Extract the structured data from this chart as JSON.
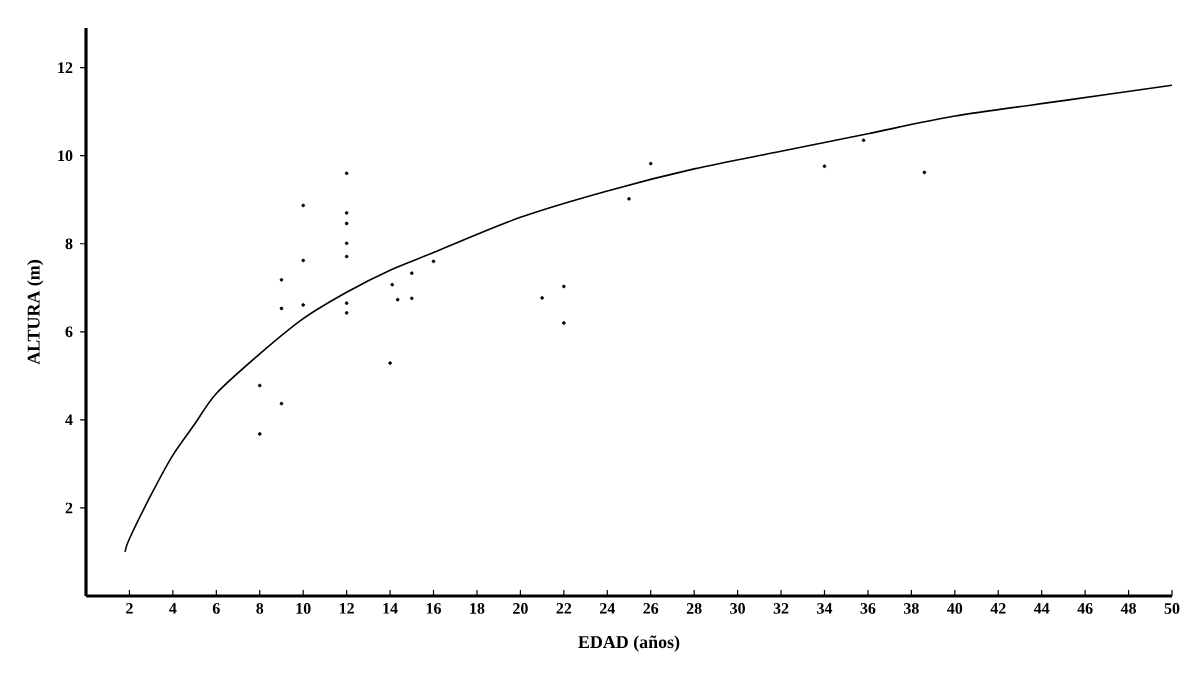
{
  "chart_data": {
    "type": "scatter",
    "xlabel": "EDAD (años)",
    "ylabel": "ALTURA (m)",
    "xlim": [
      0,
      50
    ],
    "ylim": [
      0,
      12.9
    ],
    "xticks": [
      2,
      4,
      6,
      8,
      10,
      12,
      14,
      16,
      18,
      20,
      22,
      24,
      26,
      28,
      30,
      32,
      34,
      36,
      38,
      40,
      42,
      44,
      46,
      48,
      50
    ],
    "yticks": [
      2,
      4,
      6,
      8,
      10,
      12
    ],
    "grid": false,
    "series": [
      {
        "color": "#000000",
        "marker": "circle",
        "x": [
          8,
          8,
          9,
          9,
          9,
          10,
          10,
          10,
          12,
          12,
          12,
          12,
          12,
          12,
          12,
          14.1,
          14,
          14.35,
          15,
          15,
          16,
          21,
          22,
          22,
          25,
          26,
          34,
          35.8,
          38.6
        ],
        "values": [
          4.78,
          3.68,
          4.37,
          7.18,
          6.53,
          8.87,
          7.62,
          6.61,
          9.6,
          8.7,
          8.46,
          8.01,
          7.71,
          6.65,
          6.43,
          7.07,
          5.29,
          6.73,
          7.33,
          6.76,
          7.6,
          6.77,
          7.03,
          6.2,
          9.02,
          9.82,
          9.76,
          10.35,
          9.62
        ]
      },
      {
        "type": "line",
        "color": "#000000",
        "marker": "none",
        "line_style": "solid",
        "x": [
          1.8,
          2,
          3,
          4,
          5,
          6,
          8,
          10,
          12,
          14,
          16,
          20,
          24,
          28,
          32,
          36,
          40,
          45,
          50
        ],
        "values": [
          1.0,
          1.3,
          2.3,
          3.2,
          3.9,
          4.6,
          5.5,
          6.3,
          6.9,
          7.4,
          7.8,
          8.6,
          9.2,
          9.7,
          10.1,
          10.5,
          10.9,
          11.25,
          11.6
        ]
      }
    ]
  }
}
